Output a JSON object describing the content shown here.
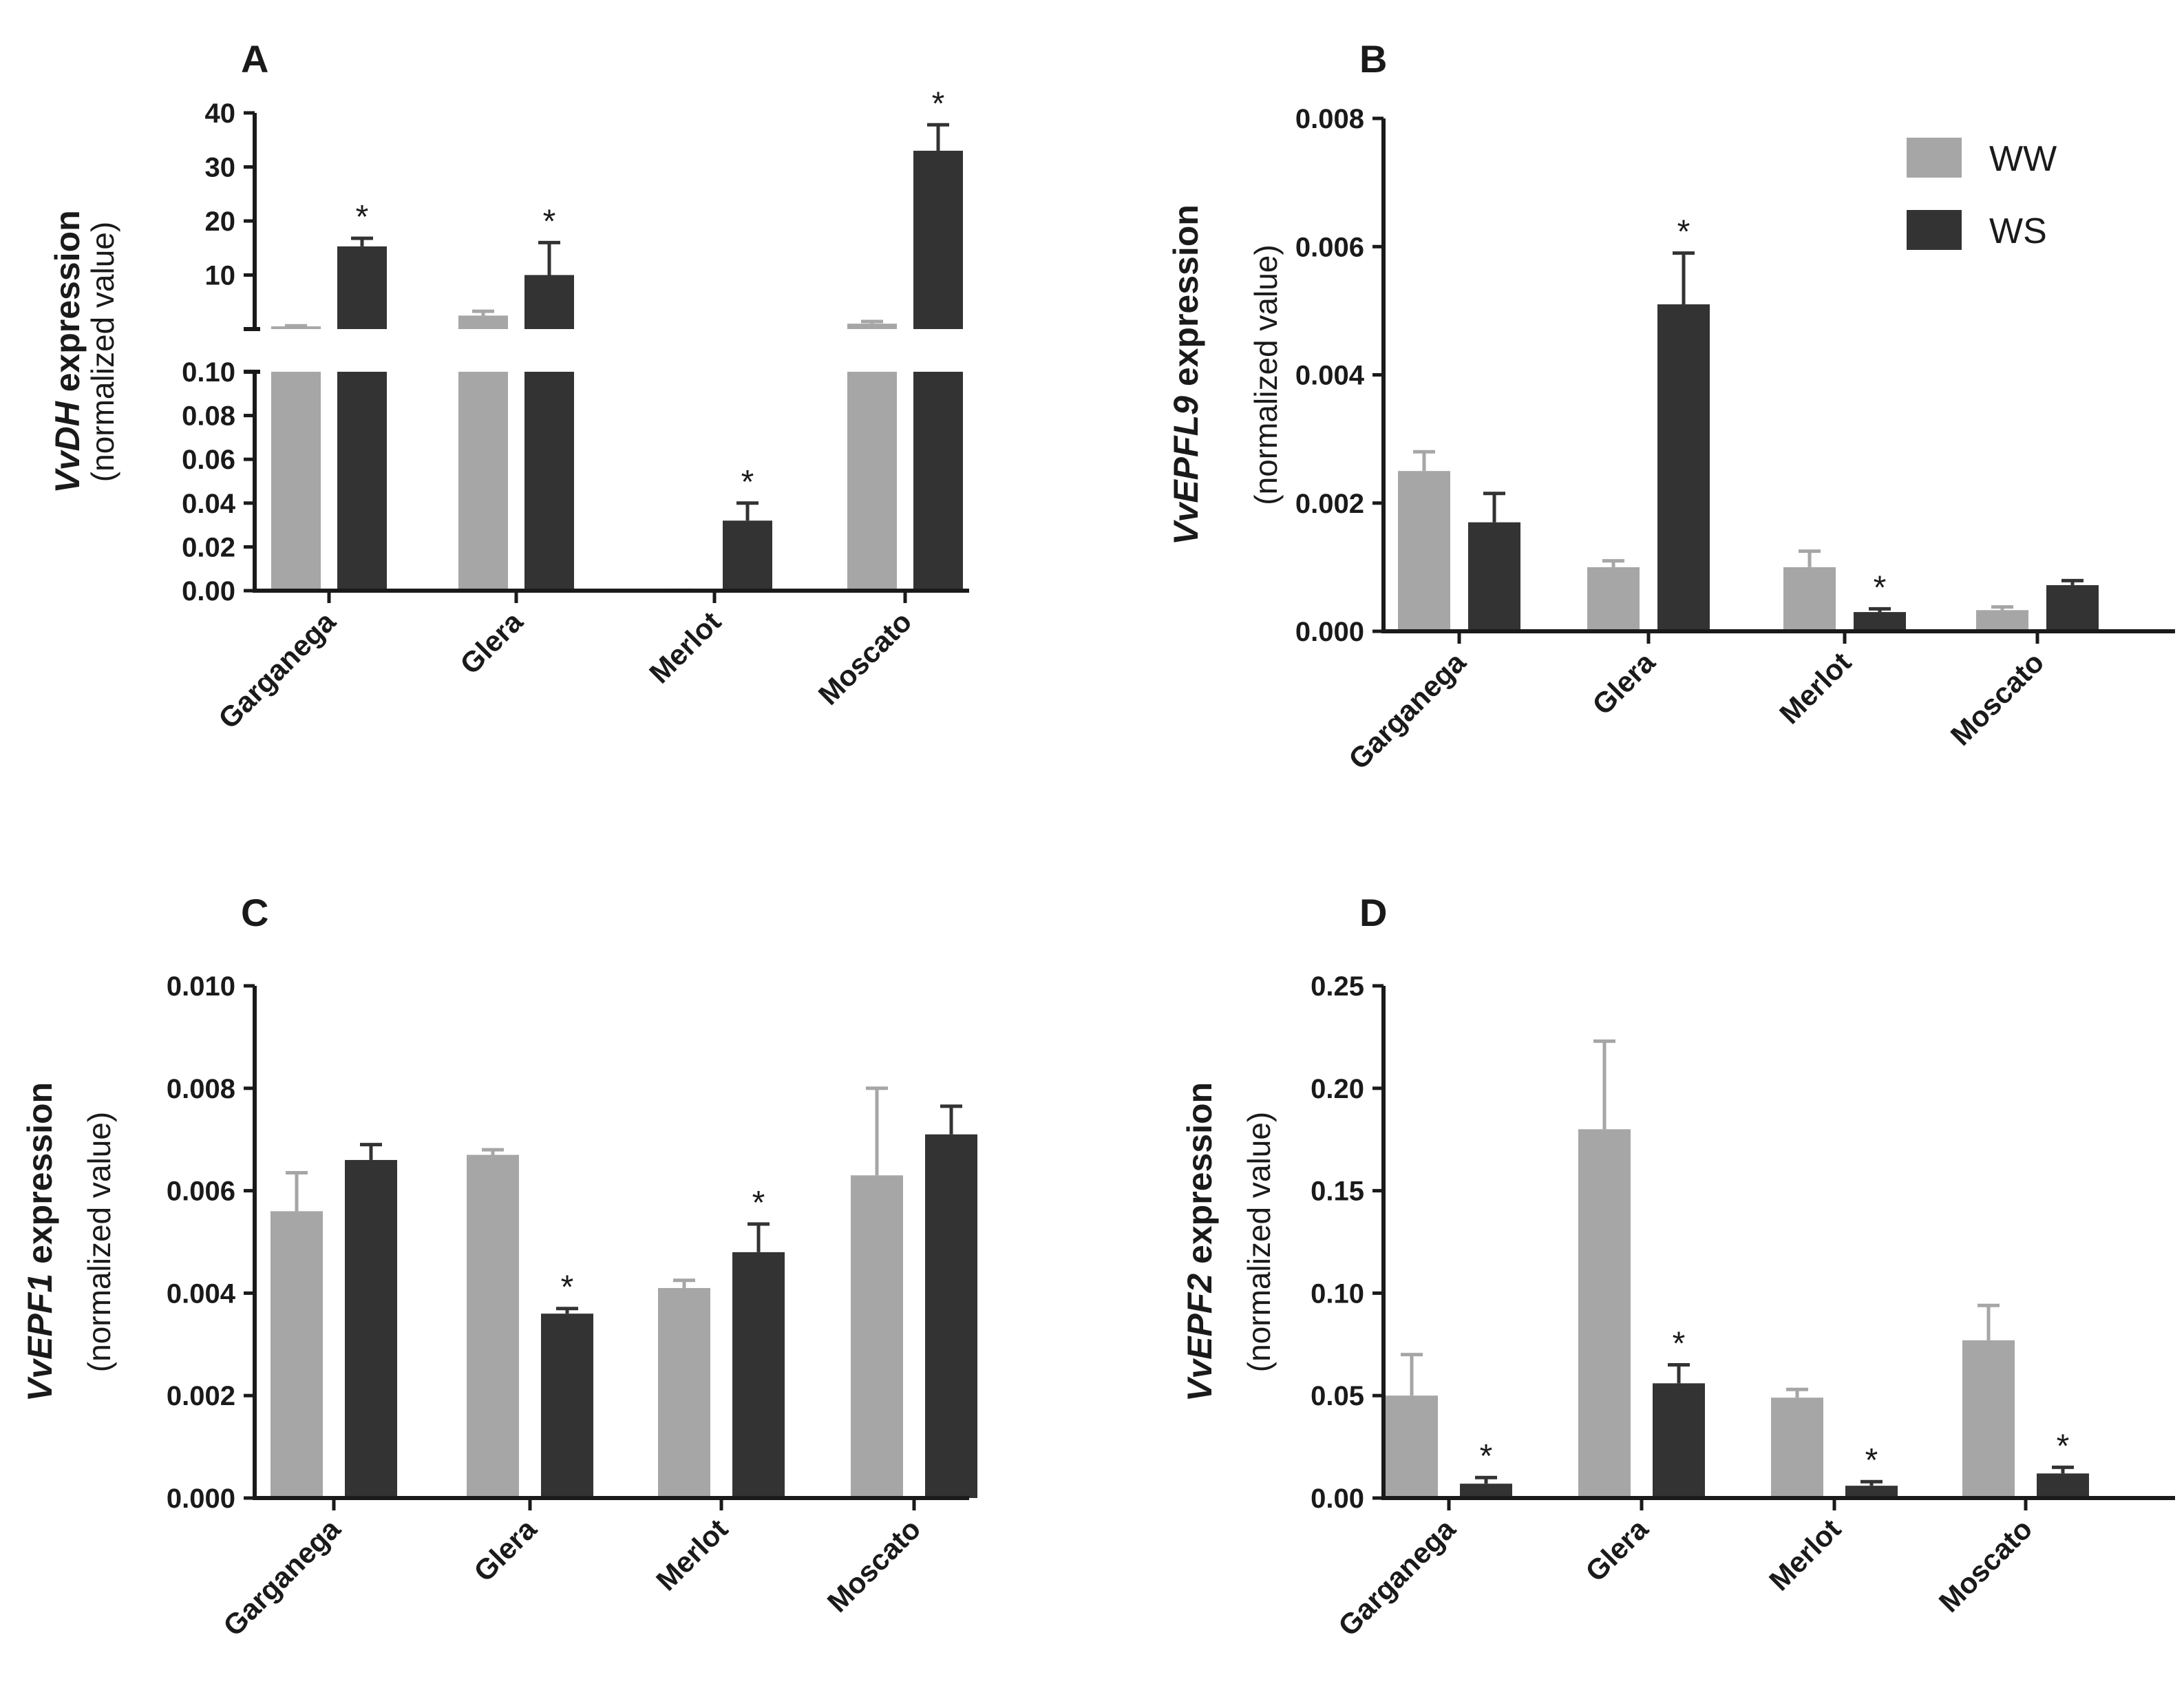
{
  "colors": {
    "ww": "#a6a6a6",
    "ws": "#333333",
    "axis": "#1a1a1a"
  },
  "legend": [
    {
      "label": "WW",
      "color_key": "ww"
    },
    {
      "label": "WS",
      "color_key": "ws"
    }
  ],
  "chart_data": [
    {
      "panel": "A",
      "type": "bar",
      "gene": "VvDH",
      "ylabel_suffix": " expression",
      "ylabel_norm": "(normalized value)",
      "categories": [
        "Garganega",
        "Glera",
        "Merlot",
        "Moscato"
      ],
      "broken_axis": true,
      "ylim_lower": [
        0,
        0.1
      ],
      "ylim_upper": [
        0,
        40
      ],
      "yticks_lower": [
        "0.00",
        "0.02",
        "0.04",
        "0.06",
        "0.08",
        "0.10"
      ],
      "yticks_upper": [
        "10",
        "20",
        "30",
        "40"
      ],
      "series": [
        {
          "name": "WW",
          "values": [
            0.5,
            2.5,
            0.0001,
            1.0
          ],
          "errors": [
            0.1,
            0.8,
            0.0001,
            0.4
          ]
        },
        {
          "name": "WS",
          "values": [
            15.3,
            10.0,
            0.032,
            33.0
          ],
          "errors": [
            1.5,
            6.0,
            0.008,
            4.8
          ]
        }
      ],
      "significance": [
        {
          "category": "Garganega",
          "series": "WS",
          "mark": "*"
        },
        {
          "category": "Glera",
          "series": "WS",
          "mark": "*"
        },
        {
          "category": "Merlot",
          "series": "WS",
          "mark": "*"
        },
        {
          "category": "Moscato",
          "series": "WS",
          "mark": "*"
        }
      ]
    },
    {
      "panel": "B",
      "type": "bar",
      "gene": "VvEPFL9",
      "ylabel_suffix": " expression",
      "ylabel_norm": "(normalized value)",
      "categories": [
        "Garganega",
        "Glera",
        "Merlot",
        "Moscato"
      ],
      "ylim": [
        0,
        0.008
      ],
      "yticks": [
        "0.000",
        "0.002",
        "0.004",
        "0.006",
        "0.008"
      ],
      "series": [
        {
          "name": "WW",
          "values": [
            0.0025,
            0.001,
            0.001,
            0.00033
          ],
          "errors": [
            0.0003,
            0.0001,
            0.00025,
            5e-05
          ]
        },
        {
          "name": "WS",
          "values": [
            0.0017,
            0.0051,
            0.0003,
            0.00072
          ],
          "errors": [
            0.00045,
            0.0008,
            5e-05,
            7e-05
          ]
        }
      ],
      "significance": [
        {
          "category": "Glera",
          "series": "WS",
          "mark": "*"
        },
        {
          "category": "Merlot",
          "series": "WS",
          "mark": "*"
        }
      ]
    },
    {
      "panel": "C",
      "type": "bar",
      "gene": "VvEPF1",
      "ylabel_suffix": " expression",
      "ylabel_norm": "(normalized value)",
      "categories": [
        "Garganega",
        "Glera",
        "Merlot",
        "Moscato"
      ],
      "ylim": [
        0,
        0.01
      ],
      "yticks": [
        "0.000",
        "0.002",
        "0.004",
        "0.006",
        "0.008",
        "0.010"
      ],
      "series": [
        {
          "name": "WW",
          "values": [
            0.0056,
            0.0067,
            0.0041,
            0.0063
          ],
          "errors": [
            0.00075,
            0.0001,
            0.00015,
            0.0017
          ]
        },
        {
          "name": "WS",
          "values": [
            0.0066,
            0.0036,
            0.0048,
            0.0071
          ],
          "errors": [
            0.0003,
            0.0001,
            0.00055,
            0.00055
          ]
        }
      ],
      "significance": [
        {
          "category": "Glera",
          "series": "WS",
          "mark": "*"
        },
        {
          "category": "Merlot",
          "series": "WS",
          "mark": "*"
        }
      ]
    },
    {
      "panel": "D",
      "type": "bar",
      "gene": "VvEPF2",
      "ylabel_suffix": " expression",
      "ylabel_norm": "(normalized value)",
      "categories": [
        "Garganega",
        "Glera",
        "Merlot",
        "Moscato"
      ],
      "ylim": [
        0,
        0.25
      ],
      "yticks": [
        "0.00",
        "0.05",
        "0.10",
        "0.15",
        "0.20",
        "0.25"
      ],
      "series": [
        {
          "name": "WW",
          "values": [
            0.05,
            0.18,
            0.049,
            0.077
          ],
          "errors": [
            0.02,
            0.043,
            0.004,
            0.017
          ]
        },
        {
          "name": "WS",
          "values": [
            0.007,
            0.056,
            0.006,
            0.012
          ],
          "errors": [
            0.003,
            0.009,
            0.002,
            0.003
          ]
        }
      ],
      "significance": [
        {
          "category": "Garganega",
          "series": "WS",
          "mark": "*"
        },
        {
          "category": "Glera",
          "series": "WS",
          "mark": "*"
        },
        {
          "category": "Merlot",
          "series": "WS",
          "mark": "*"
        },
        {
          "category": "Moscato",
          "series": "WS",
          "mark": "*"
        }
      ]
    }
  ]
}
